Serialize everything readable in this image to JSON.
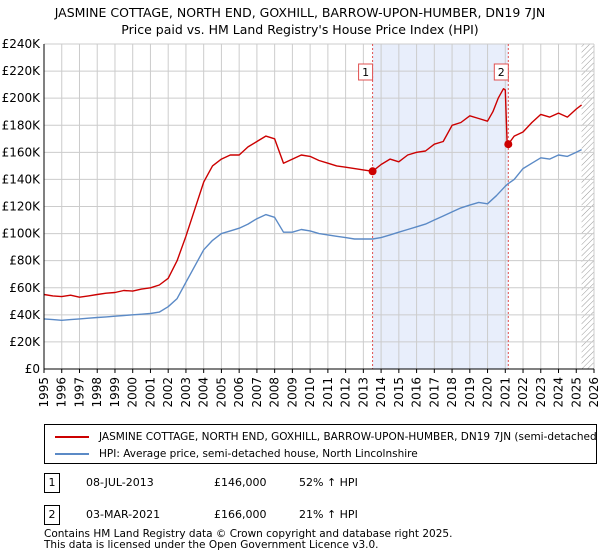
{
  "title": {
    "line1": "JASMINE COTTAGE, NORTH END, GOXHILL, BARROW-UPON-HUMBER, DN19 7JN",
    "line2": "Price paid vs. HM Land Registry's House Price Index (HPI)"
  },
  "colors": {
    "property": "#cc0000",
    "hpi": "#5b8ac6",
    "highlight": "#e8eefb",
    "grid": "#cccccc",
    "marker_line": "#e05050",
    "future_hatch": "#999999"
  },
  "chart_data": {
    "type": "line",
    "title": "Price paid vs. HM Land Registry's House Price Index (HPI)",
    "xlim": [
      1995,
      2026
    ],
    "ylim": [
      0,
      240000
    ],
    "x_ticks": [
      "1995",
      "1996",
      "1997",
      "1998",
      "1999",
      "2000",
      "2001",
      "2002",
      "2003",
      "2004",
      "2005",
      "2006",
      "2007",
      "2008",
      "2009",
      "2010",
      "2011",
      "2012",
      "2013",
      "2014",
      "2015",
      "2016",
      "2017",
      "2018",
      "2019",
      "2020",
      "2021",
      "2022",
      "2023",
      "2024",
      "2025",
      "2026"
    ],
    "y_ticks": [
      "£0",
      "£20K",
      "£40K",
      "£60K",
      "£80K",
      "£100K",
      "£120K",
      "£140K",
      "£160K",
      "£180K",
      "£200K",
      "£220K",
      "£240K"
    ],
    "highlight_range": [
      2013.52,
      2021.17
    ],
    "future_from": 2025.3,
    "series": [
      {
        "name": "JASMINE COTTAGE, NORTH END, GOXHILL, BARROW-UPON-HUMBER, DN19 7JN (semi-detached",
        "x": [
          1995,
          1995.5,
          1996,
          1996.5,
          1997,
          1997.5,
          1998,
          1998.5,
          1999,
          1999.5,
          2000,
          2000.5,
          2001,
          2001.5,
          2002,
          2002.5,
          2003,
          2003.5,
          2004,
          2004.5,
          2005,
          2005.5,
          2006,
          2006.5,
          2007,
          2007.5,
          2008,
          2008.5,
          2009,
          2009.5,
          2010,
          2010.5,
          2011,
          2011.5,
          2012,
          2012.5,
          2013,
          2013.52,
          2014,
          2014.5,
          2015,
          2015.5,
          2016,
          2016.5,
          2017,
          2017.5,
          2018,
          2018.5,
          2019,
          2019.5,
          2020,
          2020.3,
          2020.6,
          2020.9,
          2021.0,
          2021.1,
          2021.17,
          2021.5,
          2022,
          2022.5,
          2023,
          2023.5,
          2024,
          2024.5,
          2025,
          2025.3
        ],
        "values": [
          55000,
          54000,
          53500,
          54500,
          53000,
          54000,
          55000,
          56000,
          56500,
          58000,
          57500,
          59000,
          60000,
          62000,
          67000,
          80000,
          98000,
          118000,
          138000,
          150000,
          155000,
          158000,
          158000,
          164000,
          168000,
          172000,
          170000,
          152000,
          155000,
          158000,
          157000,
          154000,
          152000,
          150000,
          149000,
          148000,
          147000,
          146000,
          151000,
          155000,
          153000,
          158000,
          160000,
          161000,
          166000,
          168000,
          180000,
          182000,
          187000,
          185000,
          183000,
          190000,
          200000,
          207000,
          206000,
          167000,
          166000,
          172000,
          175000,
          182000,
          188000,
          186000,
          189000,
          186000,
          192000,
          195000
        ]
      },
      {
        "name": "HPI: Average price, semi-detached house, North Lincolnshire",
        "x": [
          1995,
          1995.5,
          1996,
          1996.5,
          1997,
          1997.5,
          1998,
          1998.5,
          1999,
          1999.5,
          2000,
          2000.5,
          2001,
          2001.5,
          2002,
          2002.5,
          2003,
          2003.5,
          2004,
          2004.5,
          2005,
          2005.5,
          2006,
          2006.5,
          2007,
          2007.5,
          2008,
          2008.5,
          2009,
          2009.5,
          2010,
          2010.5,
          2011,
          2011.5,
          2012,
          2012.5,
          2013,
          2013.52,
          2014,
          2014.5,
          2015,
          2015.5,
          2016,
          2016.5,
          2017,
          2017.5,
          2018,
          2018.5,
          2019,
          2019.5,
          2020,
          2020.5,
          2021,
          2021.17,
          2021.5,
          2022,
          2022.5,
          2023,
          2023.5,
          2024,
          2024.5,
          2025,
          2025.3
        ],
        "values": [
          37000,
          36500,
          36000,
          36500,
          37000,
          37500,
          38000,
          38500,
          39000,
          39500,
          40000,
          40500,
          41000,
          42000,
          46000,
          52000,
          64000,
          76000,
          88000,
          95000,
          100000,
          102000,
          104000,
          107000,
          111000,
          114000,
          112000,
          101000,
          101000,
          103000,
          102000,
          100000,
          99000,
          98000,
          97000,
          96000,
          96000,
          96000,
          97000,
          99000,
          101000,
          103000,
          105000,
          107000,
          110000,
          113000,
          116000,
          119000,
          121000,
          123000,
          122000,
          128000,
          135000,
          137000,
          140000,
          148000,
          152000,
          156000,
          155000,
          158000,
          157000,
          160000,
          162000
        ]
      }
    ],
    "sales": [
      {
        "label": "1",
        "x": 2013.52,
        "value": 146000
      },
      {
        "label": "2",
        "x": 2021.17,
        "value": 166000
      }
    ]
  },
  "legend": {
    "property_label": "JASMINE COTTAGE, NORTH END, GOXHILL, BARROW-UPON-HUMBER, DN19 7JN (semi-detached",
    "hpi_label": "HPI: Average price, semi-detached house, North Lincolnshire"
  },
  "transactions": [
    {
      "num": "1",
      "date": "08-JUL-2013",
      "price": "£146,000",
      "hpi": "52% ↑ HPI"
    },
    {
      "num": "2",
      "date": "03-MAR-2021",
      "price": "£166,000",
      "hpi": "21% ↑ HPI"
    }
  ],
  "footer": {
    "line1": "Contains HM Land Registry data © Crown copyright and database right 2025.",
    "line2": "This data is licensed under the Open Government Licence v3.0."
  }
}
